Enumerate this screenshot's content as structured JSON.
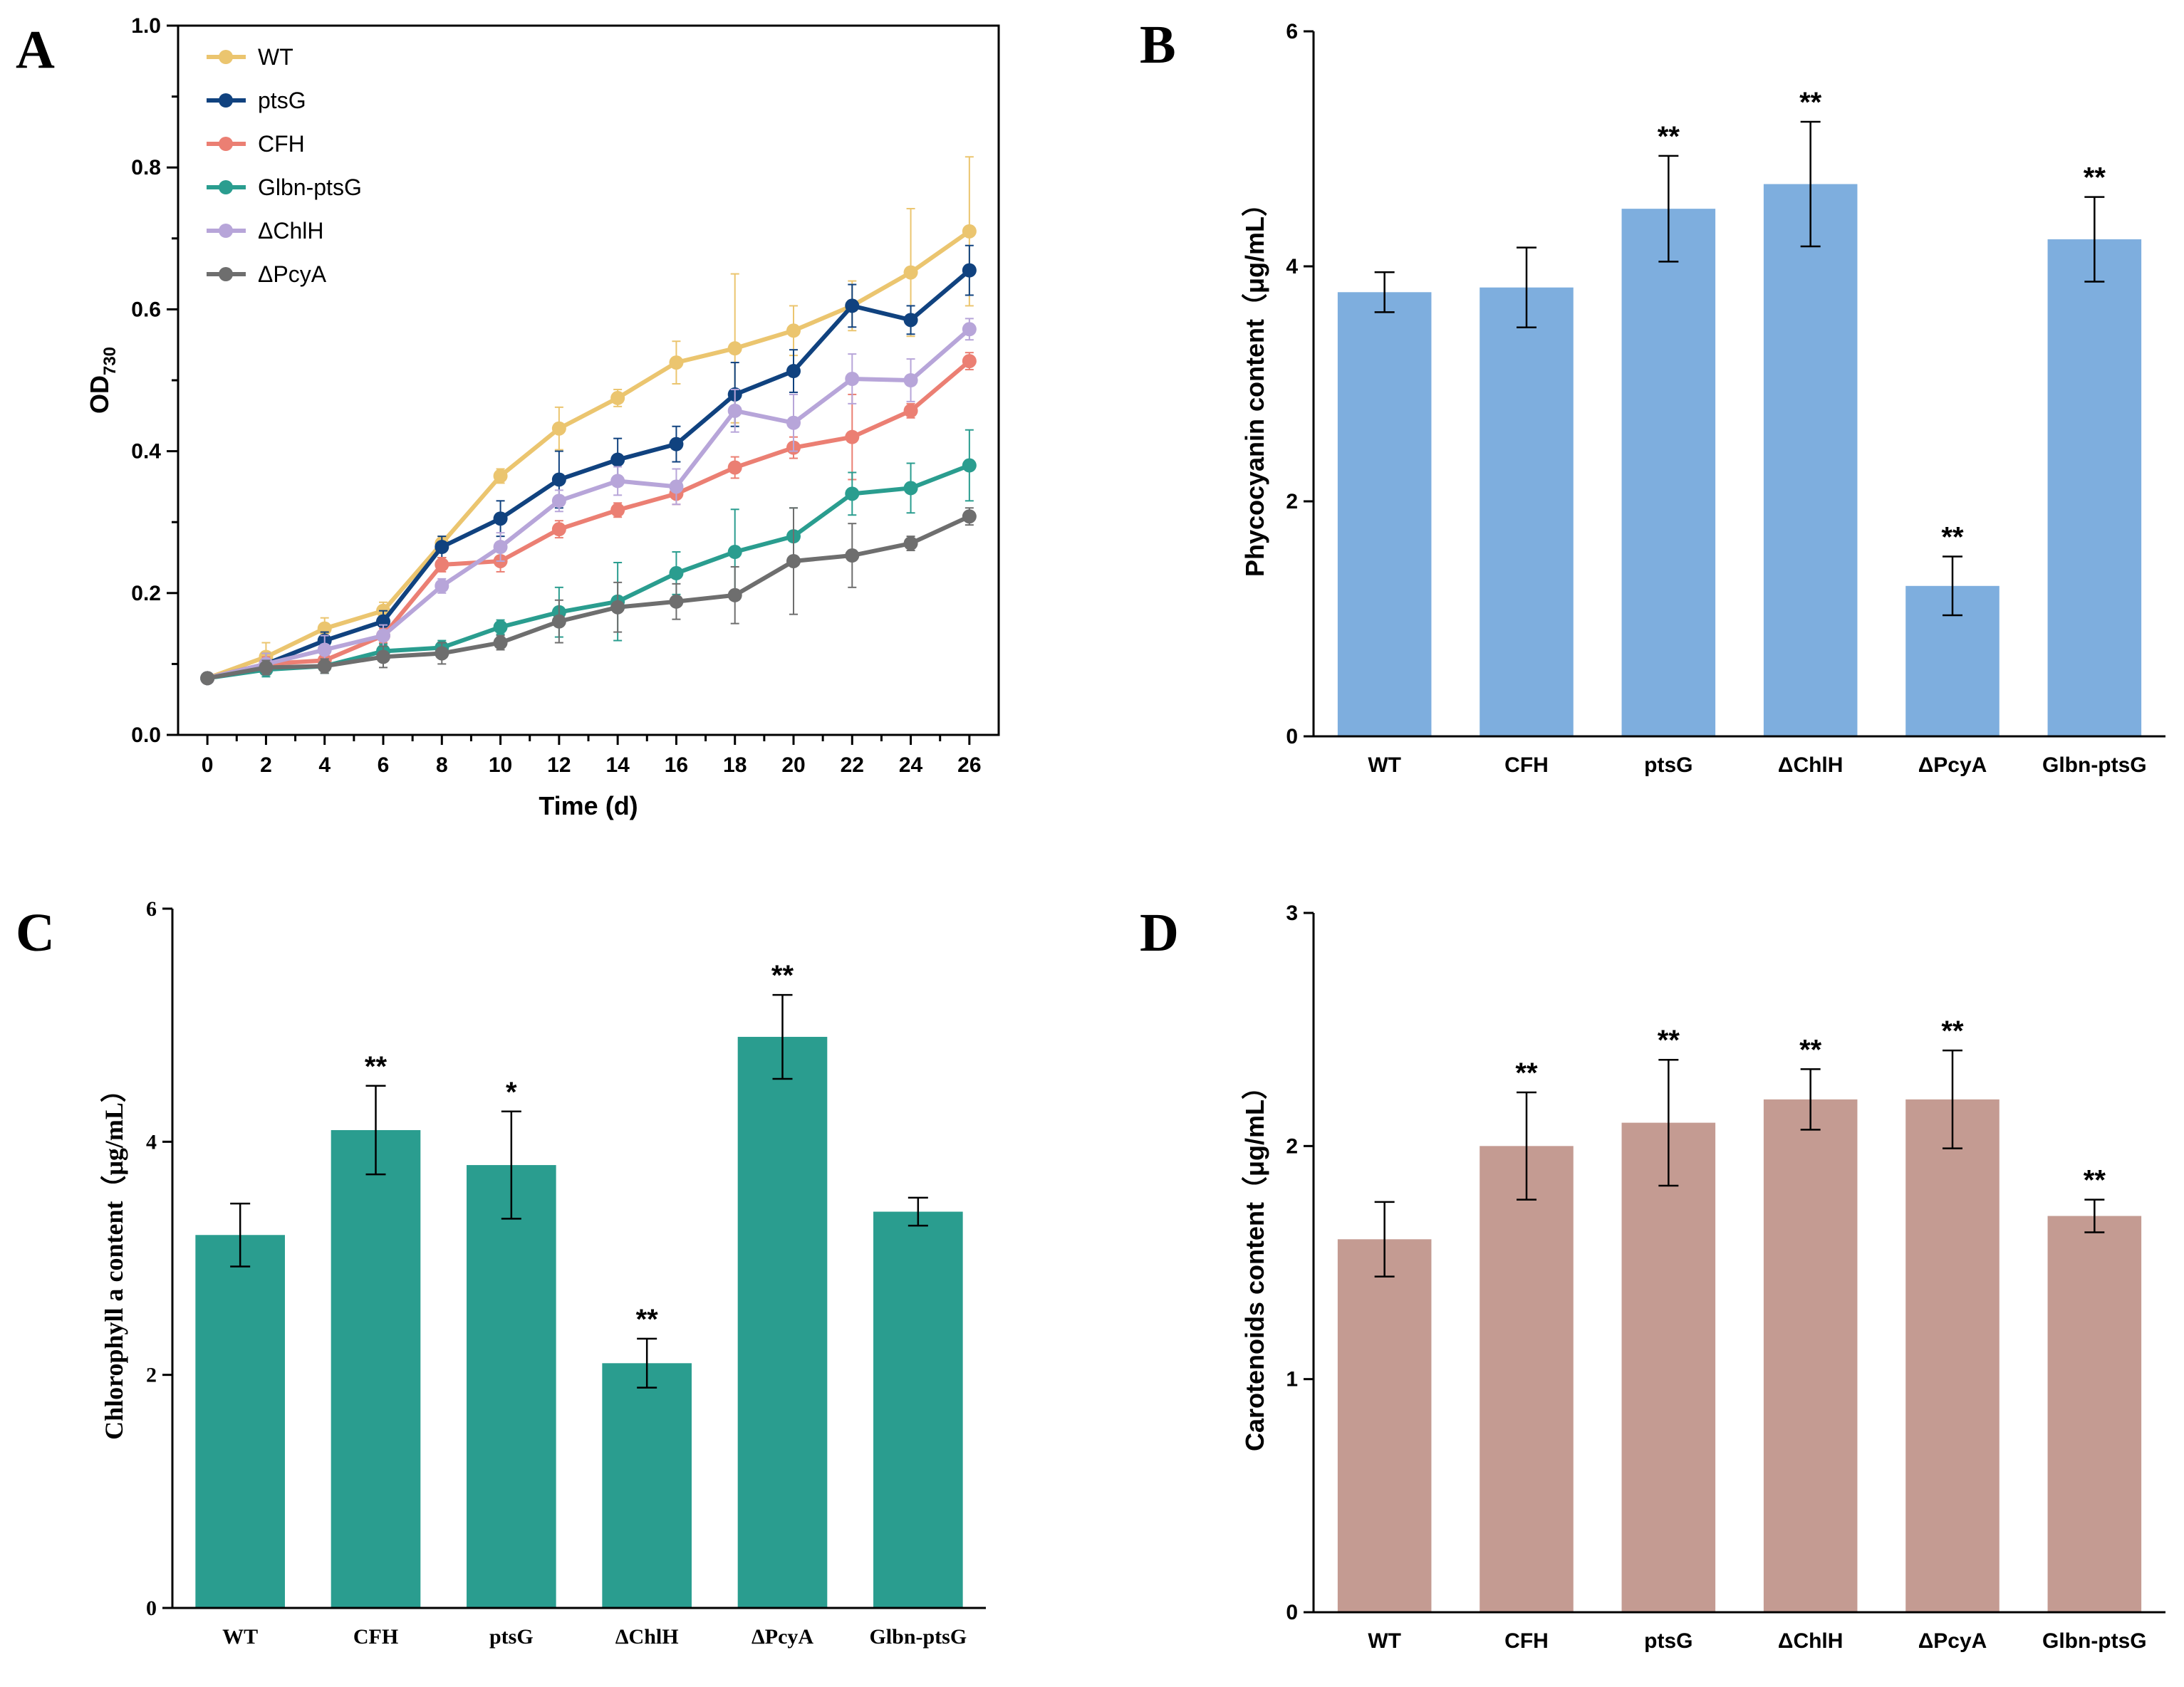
{
  "chart_data": [
    {
      "panel": "A",
      "type": "line",
      "xlabel": "Time (d)",
      "ylabel": "OD",
      "ylabel_sub": "730",
      "x": [
        0,
        2,
        4,
        6,
        8,
        10,
        12,
        14,
        16,
        18,
        20,
        22,
        24,
        26
      ],
      "x_ticks": [
        "0",
        "2",
        "4",
        "6",
        "8",
        "10",
        "12",
        "14",
        "16",
        "18",
        "20",
        "22",
        "24",
        "26"
      ],
      "xlim": [
        -1,
        27
      ],
      "ylim": [
        0,
        1.0
      ],
      "y_ticks": [
        "0.0",
        "0.2",
        "0.4",
        "0.6",
        "0.8",
        "1.0"
      ],
      "legend_position": "top-left",
      "series": [
        {
          "name": "WT",
          "color": "#EBC56F",
          "values": [
            0.08,
            0.11,
            0.15,
            0.175,
            0.27,
            0.365,
            0.432,
            0.475,
            0.525,
            0.545,
            0.57,
            0.605,
            0.652,
            0.71
          ],
          "errors": [
            0.005,
            0.02,
            0.015,
            0.012,
            0.01,
            0.01,
            0.03,
            0.012,
            0.03,
            0.105,
            0.035,
            0.035,
            0.09,
            0.105
          ]
        },
        {
          "name": "ptsG",
          "color": "#10427F",
          "values": [
            0.08,
            0.1,
            0.133,
            0.16,
            0.265,
            0.305,
            0.36,
            0.388,
            0.41,
            0.48,
            0.513,
            0.605,
            0.585,
            0.655
          ],
          "errors": [
            0.005,
            0.015,
            0.012,
            0.015,
            0.015,
            0.025,
            0.04,
            0.03,
            0.025,
            0.045,
            0.03,
            0.03,
            0.02,
            0.035
          ]
        },
        {
          "name": "CFH",
          "color": "#EB7F73",
          "values": [
            0.08,
            0.1,
            0.105,
            0.14,
            0.24,
            0.245,
            0.29,
            0.317,
            0.34,
            0.377,
            0.405,
            0.42,
            0.457,
            0.527
          ],
          "errors": [
            0.005,
            0.01,
            0.01,
            0.01,
            0.01,
            0.015,
            0.012,
            0.01,
            0.015,
            0.015,
            0.015,
            0.06,
            0.01,
            0.012
          ]
        },
        {
          "name": "Glbn-ptsG",
          "color": "#2A9D8F",
          "values": [
            0.08,
            0.092,
            0.097,
            0.118,
            0.123,
            0.152,
            0.173,
            0.188,
            0.228,
            0.258,
            0.28,
            0.34,
            0.348,
            0.38
          ],
          "errors": [
            0.005,
            0.01,
            0.01,
            0.01,
            0.01,
            0.01,
            0.035,
            0.055,
            0.03,
            0.06,
            0.04,
            0.03,
            0.035,
            0.05
          ]
        },
        {
          "name": "ΔChlH",
          "color": "#B7A5D9",
          "values": [
            0.08,
            0.1,
            0.12,
            0.14,
            0.21,
            0.265,
            0.33,
            0.358,
            0.35,
            0.457,
            0.44,
            0.502,
            0.5,
            0.572
          ],
          "errors": [
            0.005,
            0.015,
            0.02,
            0.015,
            0.01,
            0.02,
            0.015,
            0.02,
            0.025,
            0.03,
            0.04,
            0.035,
            0.03,
            0.015
          ]
        },
        {
          "name": "ΔPcyA",
          "color": "#6E6E6E",
          "values": [
            0.08,
            0.095,
            0.097,
            0.11,
            0.115,
            0.13,
            0.16,
            0.18,
            0.188,
            0.197,
            0.245,
            0.253,
            0.27,
            0.308
          ],
          "errors": [
            0.005,
            0.01,
            0.01,
            0.015,
            0.015,
            0.01,
            0.03,
            0.035,
            0.025,
            0.04,
            0.075,
            0.045,
            0.01,
            0.012
          ]
        }
      ]
    },
    {
      "panel": "B",
      "type": "bar",
      "color": "#7EAEDE",
      "ylabel": "Phycocyanin content（μg/mL）",
      "categories": [
        "WT",
        "CFH",
        "ptsG",
        "ΔChlH",
        "ΔPcyA",
        "Glbn-ptsG"
      ],
      "values": [
        3.78,
        3.82,
        4.49,
        4.7,
        1.28,
        4.23
      ],
      "errors": [
        0.17,
        0.34,
        0.45,
        0.53,
        0.25,
        0.36
      ],
      "significance": [
        "",
        "",
        "**",
        "**",
        "**",
        "**"
      ],
      "ylim": [
        0,
        6
      ],
      "y_ticks": [
        "0",
        "2",
        "4",
        "6"
      ]
    },
    {
      "panel": "C",
      "type": "bar",
      "color": "#2A9D8F",
      "ylabel": "Chlorophyll a content（μg/mL）",
      "categories": [
        "WT",
        "CFH",
        "ptsG",
        "ΔChlH",
        "ΔPcyA",
        "Glbn-ptsG"
      ],
      "values": [
        3.2,
        4.1,
        3.8,
        2.1,
        4.9,
        3.4
      ],
      "errors": [
        0.27,
        0.38,
        0.46,
        0.21,
        0.36,
        0.12
      ],
      "significance": [
        "",
        "**",
        "*",
        "**",
        "**",
        ""
      ],
      "ylim": [
        0,
        6
      ],
      "y_ticks": [
        "0",
        "2",
        "4",
        "6"
      ]
    },
    {
      "panel": "D",
      "type": "bar",
      "color": "#C49B92",
      "ylabel": "Carotenoids content（μg/mL）",
      "categories": [
        "WT",
        "CFH",
        "ptsG",
        "ΔChlH",
        "ΔPcyA",
        "Glbn-ptsG"
      ],
      "values": [
        1.6,
        2.0,
        2.1,
        2.2,
        2.2,
        1.7
      ],
      "errors": [
        0.16,
        0.23,
        0.27,
        0.13,
        0.21,
        0.07
      ],
      "significance": [
        "",
        "**",
        "**",
        "**",
        "**",
        "**"
      ],
      "ylim": [
        0,
        3
      ],
      "y_ticks": [
        "0",
        "1",
        "2",
        "3"
      ]
    }
  ]
}
